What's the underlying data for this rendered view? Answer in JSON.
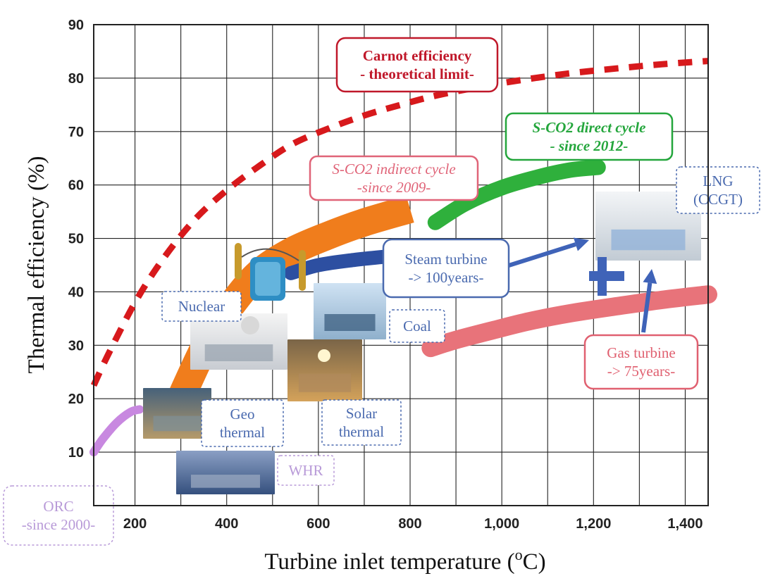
{
  "chart_data": {
    "type": "line",
    "xlabel_main": "Turbine inlet temperature (",
    "xlabel_sup": "o",
    "xlabel_end": "C)",
    "ylabel": "Thermal efficiency (%)",
    "xlim": [
      110,
      1450
    ],
    "ylim": [
      0,
      90
    ],
    "x_ticks": [
      200,
      400,
      600,
      800,
      1000,
      1200,
      1400
    ],
    "x_tick_labels": [
      "200",
      "400",
      "600",
      "800",
      "1,000",
      "1,200",
      "1,400"
    ],
    "y_ticks": [
      10,
      20,
      30,
      40,
      50,
      60,
      70,
      80,
      90
    ],
    "y_tick_labels": [
      "10",
      "20",
      "30",
      "40",
      "50",
      "60",
      "70",
      "80",
      "90"
    ],
    "x_grid": [
      200,
      300,
      400,
      500,
      600,
      700,
      800,
      900,
      1000,
      1100,
      1200,
      1300,
      1400
    ],
    "y_grid": [
      10,
      20,
      30,
      40,
      50,
      60,
      70,
      80
    ],
    "grid": true,
    "series": [
      {
        "key": "carnot",
        "color": "#d7191c",
        "style": "dashed",
        "x": [
          110,
          140,
          200,
          260,
          330,
          400,
          470,
          540,
          620,
          700,
          780,
          860,
          950,
          1040,
          1140,
          1250,
          1350,
          1450
        ],
        "y": [
          22.5,
          28,
          38,
          46,
          53.5,
          59,
          63.5,
          67.5,
          70.5,
          73,
          75,
          76.8,
          78.3,
          79.6,
          80.8,
          81.8,
          82.6,
          83.2
        ]
      },
      {
        "key": "orc",
        "color": "#c888e0",
        "style": "band",
        "x": [
          110,
          130,
          160,
          190,
          210
        ],
        "y": [
          10,
          12.5,
          15.5,
          17.5,
          18
        ],
        "width": 12
      },
      {
        "key": "s_co2_indirect",
        "color": "#f07d1c",
        "style": "band",
        "x": [
          270,
          310,
          360,
          410,
          470,
          540,
          620,
          700,
          800
        ],
        "y": [
          14,
          22,
          31,
          37.5,
          43.5,
          47.5,
          50.5,
          53,
          55.5
        ],
        "width": 40
      },
      {
        "key": "steam",
        "color": "#2d4fa1",
        "style": "band",
        "x": [
          540,
          600,
          680,
          760,
          800
        ],
        "y": [
          43.5,
          45,
          46,
          46.7,
          47
        ],
        "width": 20
      },
      {
        "key": "s_co2_direct",
        "color": "#2fb03c",
        "style": "band",
        "x": [
          855,
          920,
          1000,
          1080,
          1150,
          1210
        ],
        "y": [
          53,
          56.5,
          59.5,
          61.5,
          62.8,
          63.3
        ],
        "width": 22
      },
      {
        "key": "gas_turbine",
        "color": "#e8737a",
        "style": "band",
        "x": [
          845,
          900,
          980,
          1060,
          1150,
          1250,
          1350,
          1450
        ],
        "y": [
          29.5,
          31,
          32.8,
          34.5,
          36,
          37.3,
          38.5,
          39.5
        ],
        "width": 26
      }
    ],
    "annotations": [
      {
        "key": "carnot",
        "lines": [
          "Carnot efficiency",
          "- theoretical limit-"
        ],
        "color": "#c0182a",
        "style": "box",
        "bold": true
      },
      {
        "key": "s_co2_indirect",
        "lines": [
          "S-CO2 indirect cycle",
          "-since 2009-"
        ],
        "color": "#e06478",
        "style": "box",
        "italic": true
      },
      {
        "key": "s_co2_direct",
        "lines": [
          "S-CO2 direct cycle",
          "- since 2012-"
        ],
        "color": "#24a63c",
        "style": "box",
        "italic": true,
        "bold": true
      },
      {
        "key": "steam",
        "lines": [
          "Steam turbine",
          "-> 100years-"
        ],
        "color": "#4a6aaf",
        "style": "box"
      },
      {
        "key": "gas",
        "lines": [
          "Gas turbine",
          "-> 75years-"
        ],
        "color": "#e06070",
        "style": "box"
      },
      {
        "key": "lng",
        "lines": [
          "LNG",
          "(CCGT)"
        ],
        "color": "#4a6aaf",
        "style": "dash"
      },
      {
        "key": "nuclear",
        "lines": [
          "Nuclear"
        ],
        "color": "#4a6aaf",
        "style": "dash"
      },
      {
        "key": "coal",
        "lines": [
          "Coal"
        ],
        "color": "#4a6aaf",
        "style": "dash"
      },
      {
        "key": "geo",
        "lines": [
          "Geo",
          "thermal"
        ],
        "color": "#4a6aaf",
        "style": "dash"
      },
      {
        "key": "solar",
        "lines": [
          "Solar",
          "thermal"
        ],
        "color": "#4a6aaf",
        "style": "dash"
      },
      {
        "key": "whr",
        "lines": [
          "WHR"
        ],
        "color": "#b89ad8",
        "style": "dash"
      },
      {
        "key": "orc",
        "lines": [
          "ORC",
          "-since 2000-"
        ],
        "color": "#b89ad8",
        "style": "dash"
      }
    ],
    "plus_color": "#3f63b8",
    "arrow_color": "#3f63b8"
  }
}
